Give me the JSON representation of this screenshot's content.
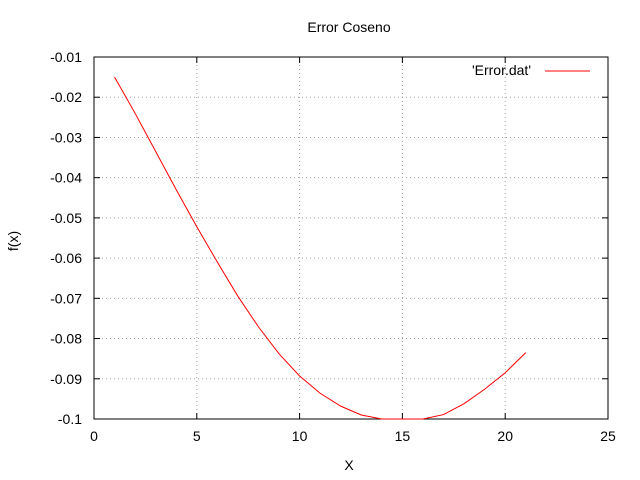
{
  "chart_data": {
    "type": "line",
    "title": "Error Coseno",
    "xlabel": "X",
    "ylabel": "f(x)",
    "xlim": [
      0,
      25
    ],
    "ylim": [
      -0.1,
      -0.01
    ],
    "xticks": [
      0,
      5,
      10,
      15,
      20,
      25
    ],
    "yticks": [
      -0.01,
      -0.02,
      -0.03,
      -0.04,
      -0.05,
      -0.06,
      -0.07,
      -0.08,
      -0.09,
      -0.1
    ],
    "xtick_labels": [
      "0",
      "5",
      "10",
      "15",
      "20",
      "25"
    ],
    "ytick_labels": [
      "-0.01",
      "-0.02",
      "-0.03",
      "-0.04",
      "-0.05",
      "-0.06",
      "-0.07",
      "-0.08",
      "-0.09",
      "-0.1"
    ],
    "grid": true,
    "legend_position": "top-right",
    "series": [
      {
        "name": "'Error.dat'",
        "color": "#ff0000",
        "x": [
          1,
          2,
          3,
          4,
          5,
          6,
          7,
          8,
          9,
          10,
          11,
          12,
          13,
          14,
          15,
          15.5,
          16,
          17,
          18,
          19,
          20,
          21
        ],
        "y": [
          -0.015,
          -0.024,
          -0.0335,
          -0.043,
          -0.0522,
          -0.061,
          -0.0695,
          -0.0771,
          -0.0838,
          -0.0893,
          -0.0936,
          -0.0968,
          -0.099,
          -0.1,
          -0.1005,
          -0.1005,
          -0.1003,
          -0.0989,
          -0.0962,
          -0.0926,
          -0.0885,
          -0.0835
        ]
      }
    ]
  }
}
